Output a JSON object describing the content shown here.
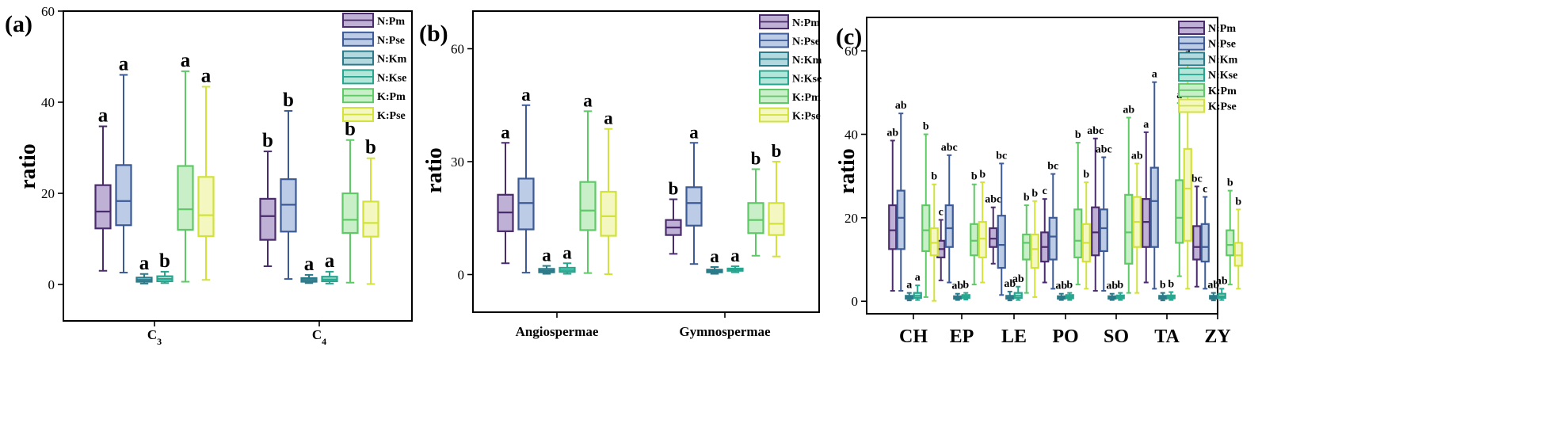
{
  "colors": {
    "N:Pm": {
      "stroke": "#4a2b6b",
      "fill": "#bfb0d6"
    },
    "N:Pse": {
      "stroke": "#3b5a96",
      "fill": "#bccbe6"
    },
    "N:Km": {
      "stroke": "#2a7a8a",
      "fill": "#b3d9df"
    },
    "N:Kse": {
      "stroke": "#27a58f",
      "fill": "#b3e6d8"
    },
    "K:Pm": {
      "stroke": "#5ec966",
      "fill": "#c9efc9"
    },
    "K:Pse": {
      "stroke": "#d2e23a",
      "fill": "#f4f8c0"
    }
  },
  "chart_data": [
    {
      "type": "box",
      "panel_label": "(a)",
      "ylabel": "ratio",
      "ylim": [
        -8,
        60
      ],
      "yticks": [
        0,
        20,
        40,
        60
      ],
      "categories": [
        "C3",
        "C4"
      ],
      "category_labels": [
        {
          "main": "C",
          "sub": "3"
        },
        {
          "main": "C",
          "sub": "4"
        }
      ],
      "legend": [
        "N:Pm",
        "N:Pse",
        "N:Km",
        "N:Kse",
        "K:Pm",
        "K:Pse"
      ],
      "series": [
        {
          "name": "N:Pm",
          "boxes": [
            {
              "min": 3,
              "q1": 12.3,
              "median": 16,
              "q3": 21.8,
              "max": 34.7,
              "sig": "a"
            },
            {
              "min": 4,
              "q1": 9.8,
              "median": 15,
              "q3": 18.8,
              "max": 29.2,
              "sig": "b"
            }
          ]
        },
        {
          "name": "N:Pse",
          "boxes": [
            {
              "min": 2.6,
              "q1": 13,
              "median": 18.3,
              "q3": 26.2,
              "max": 46,
              "sig": "a"
            },
            {
              "min": 1.2,
              "q1": 11.6,
              "median": 17.5,
              "q3": 23.1,
              "max": 38.1,
              "sig": "b"
            }
          ]
        },
        {
          "name": "N:Km",
          "boxes": [
            {
              "min": 0.2,
              "q1": 0.6,
              "median": 1,
              "q3": 1.5,
              "max": 2.3,
              "sig": "a"
            },
            {
              "min": 0.3,
              "q1": 0.6,
              "median": 1,
              "q3": 1.4,
              "max": 2.1,
              "sig": "a"
            }
          ]
        },
        {
          "name": "N:Kse",
          "boxes": [
            {
              "min": 0.3,
              "q1": 0.7,
              "median": 1.2,
              "q3": 1.8,
              "max": 2.8,
              "sig": "b"
            },
            {
              "min": 0.2,
              "q1": 0.7,
              "median": 1.1,
              "q3": 1.7,
              "max": 2.8,
              "sig": "a"
            }
          ]
        },
        {
          "name": "K:Pm",
          "boxes": [
            {
              "min": 0.6,
              "q1": 12,
              "median": 16.5,
              "q3": 26,
              "max": 46.8,
              "sig": "a"
            },
            {
              "min": 0.4,
              "q1": 11.3,
              "median": 14.2,
              "q3": 20,
              "max": 31.7,
              "sig": "b"
            }
          ]
        },
        {
          "name": "K:Pse",
          "boxes": [
            {
              "min": 1,
              "q1": 10.6,
              "median": 15.2,
              "q3": 23.6,
              "max": 43.4,
              "sig": "a"
            },
            {
              "min": 0.1,
              "q1": 10.5,
              "median": 13.5,
              "q3": 18.2,
              "max": 27.7,
              "sig": "b"
            }
          ]
        }
      ]
    },
    {
      "type": "box",
      "panel_label": "(b)",
      "ylabel": "ratio",
      "ylim": [
        -10,
        70
      ],
      "yticks": [
        0,
        30,
        60
      ],
      "categories": [
        "Angiospermae",
        "Gymnospermae"
      ],
      "legend": [
        "N:Pm",
        "N:Pse",
        "N:Km",
        "N:Kse",
        "K:Pm",
        "K:Pse"
      ],
      "series": [
        {
          "name": "N:Pm",
          "boxes": [
            {
              "min": 3,
              "q1": 11.5,
              "median": 16.5,
              "q3": 21.2,
              "max": 35,
              "sig": "a"
            },
            {
              "min": 5.5,
              "q1": 10.5,
              "median": 12.5,
              "q3": 14.5,
              "max": 20,
              "sig": "b"
            }
          ]
        },
        {
          "name": "N:Pse",
          "boxes": [
            {
              "min": 0.5,
              "q1": 12,
              "median": 19,
              "q3": 25.5,
              "max": 45,
              "sig": "a"
            },
            {
              "min": 2.8,
              "q1": 13,
              "median": 19,
              "q3": 23.2,
              "max": 35,
              "sig": "a"
            }
          ]
        },
        {
          "name": "N:Km",
          "boxes": [
            {
              "min": 0.2,
              "q1": 0.6,
              "median": 1,
              "q3": 1.5,
              "max": 2.3,
              "sig": "a"
            },
            {
              "min": 0.2,
              "q1": 0.6,
              "median": 0.9,
              "q3": 1.3,
              "max": 2,
              "sig": "a"
            }
          ]
        },
        {
          "name": "N:Kse",
          "boxes": [
            {
              "min": 0.2,
              "q1": 0.7,
              "median": 1.2,
              "q3": 1.8,
              "max": 3,
              "sig": "a"
            },
            {
              "min": 0.6,
              "q1": 1,
              "median": 1.3,
              "q3": 1.6,
              "max": 2.2,
              "sig": "a"
            }
          ]
        },
        {
          "name": "K:Pm",
          "boxes": [
            {
              "min": 0.4,
              "q1": 11.8,
              "median": 17,
              "q3": 24.6,
              "max": 43.4,
              "sig": "a"
            },
            {
              "min": 5,
              "q1": 11,
              "median": 14.5,
              "q3": 19,
              "max": 28,
              "sig": "b"
            }
          ]
        },
        {
          "name": "K:Pse",
          "boxes": [
            {
              "min": 0.1,
              "q1": 10.3,
              "median": 15.5,
              "q3": 22,
              "max": 38.7,
              "sig": "a"
            },
            {
              "min": 4.8,
              "q1": 10.5,
              "median": 13.5,
              "q3": 19,
              "max": 30,
              "sig": "b"
            }
          ]
        }
      ]
    },
    {
      "type": "box",
      "panel_label": "(c)",
      "ylabel": "ratio",
      "ylim": [
        -3,
        68
      ],
      "yticks": [
        0,
        20,
        40,
        60
      ],
      "categories": [
        "CH",
        "EP",
        "LE",
        "PO",
        "SO",
        "TA",
        "ZY"
      ],
      "legend": [
        "N:Pm",
        "N:Pse",
        "N:Km",
        "N:Kse",
        "K:Pm",
        "K:Pse"
      ],
      "series": [
        {
          "name": "N:Pm",
          "boxes": [
            {
              "min": 2.5,
              "q1": 12.5,
              "median": 17,
              "q3": 23,
              "max": 38.5,
              "sig": "ab"
            },
            {
              "min": 5,
              "q1": 10.5,
              "median": 12.5,
              "q3": 14.5,
              "max": 19.5,
              "sig": "c"
            },
            {
              "min": 9,
              "q1": 13,
              "median": 15,
              "q3": 17.5,
              "max": 22.5,
              "sig": "abc"
            },
            {
              "min": 4.5,
              "q1": 9.5,
              "median": 13,
              "q3": 16.5,
              "max": 24.5,
              "sig": "c"
            },
            {
              "min": 2.5,
              "q1": 11,
              "median": 16.5,
              "q3": 22.5,
              "max": 39,
              "sig": "abc"
            },
            {
              "min": 4.5,
              "q1": 13,
              "median": 19,
              "q3": 24.5,
              "max": 40.5,
              "sig": "a"
            },
            {
              "min": 3.5,
              "q1": 10,
              "median": 13,
              "q3": 18,
              "max": 27.5,
              "sig": "bc"
            }
          ]
        },
        {
          "name": "N:Pse",
          "boxes": [
            {
              "min": 2.5,
              "q1": 12.5,
              "median": 20,
              "q3": 26.5,
              "max": 45,
              "sig": "ab"
            },
            {
              "min": 4.5,
              "q1": 13,
              "median": 17.5,
              "q3": 23,
              "max": 35,
              "sig": "abc"
            },
            {
              "min": 1.5,
              "q1": 8,
              "median": 13.5,
              "q3": 20.5,
              "max": 33,
              "sig": "bc"
            },
            {
              "min": 3,
              "q1": 10,
              "median": 15.5,
              "q3": 20,
              "max": 30.5,
              "sig": "bc"
            },
            {
              "min": 2.5,
              "q1": 12,
              "median": 17.5,
              "q3": 22,
              "max": 34.5,
              "sig": "abc"
            },
            {
              "min": 3,
              "q1": 13,
              "median": 24,
              "q3": 32,
              "max": 52.5,
              "sig": "a"
            },
            {
              "min": 3,
              "q1": 9.5,
              "median": 13,
              "q3": 18.5,
              "max": 25,
              "sig": "c"
            }
          ]
        },
        {
          "name": "N:Km",
          "boxes": [
            {
              "min": 0.2,
              "q1": 0.6,
              "median": 1,
              "q3": 1.3,
              "max": 2,
              "sig": "a"
            },
            {
              "min": 0.3,
              "q1": 0.6,
              "median": 0.9,
              "q3": 1.2,
              "max": 1.8,
              "sig": "ab"
            },
            {
              "min": 0.2,
              "q1": 0.6,
              "median": 0.9,
              "q3": 1.3,
              "max": 2.3,
              "sig": "ab"
            },
            {
              "min": 0.3,
              "q1": 0.6,
              "median": 0.9,
              "q3": 1.2,
              "max": 1.8,
              "sig": "ab"
            },
            {
              "min": 0.3,
              "q1": 0.6,
              "median": 0.9,
              "q3": 1.2,
              "max": 1.8,
              "sig": "ab"
            },
            {
              "min": 0.2,
              "q1": 0.6,
              "median": 1,
              "q3": 1.3,
              "max": 2,
              "sig": "b"
            },
            {
              "min": 0.2,
              "q1": 0.6,
              "median": 1,
              "q3": 1.3,
              "max": 2,
              "sig": "ab"
            }
          ]
        },
        {
          "name": "N:Kse",
          "boxes": [
            {
              "min": 0.3,
              "q1": 0.8,
              "median": 1.3,
              "q3": 2,
              "max": 3.8,
              "sig": "a"
            },
            {
              "min": 0.4,
              "q1": 0.8,
              "median": 1.1,
              "q3": 1.5,
              "max": 2,
              "sig": "b"
            },
            {
              "min": 0.3,
              "q1": 0.8,
              "median": 1.3,
              "q3": 2,
              "max": 3.5,
              "sig": "ab"
            },
            {
              "min": 0.3,
              "q1": 0.7,
              "median": 1.1,
              "q3": 1.5,
              "max": 2,
              "sig": "b"
            },
            {
              "min": 0.3,
              "q1": 0.7,
              "median": 1,
              "q3": 1.4,
              "max": 2,
              "sig": "b"
            },
            {
              "min": 0.3,
              "q1": 0.7,
              "median": 1,
              "q3": 1.4,
              "max": 2.2,
              "sig": "b"
            },
            {
              "min": 0.3,
              "q1": 0.8,
              "median": 1.2,
              "q3": 1.8,
              "max": 3,
              "sig": "ab"
            }
          ]
        },
        {
          "name": "K:Pm",
          "boxes": [
            {
              "min": 1,
              "q1": 12,
              "median": 17,
              "q3": 23,
              "max": 40,
              "sig": "b"
            },
            {
              "min": 4,
              "q1": 11,
              "median": 14.5,
              "q3": 18.5,
              "max": 28,
              "sig": "b"
            },
            {
              "min": 2,
              "q1": 10,
              "median": 14,
              "q3": 16,
              "max": 23,
              "sig": "b"
            },
            {
              "min": 4,
              "q1": 10.5,
              "median": 14.5,
              "q3": 22,
              "max": 38,
              "sig": "b"
            },
            {
              "min": 2,
              "q1": 9,
              "median": 16.5,
              "q3": 25.5,
              "max": 44,
              "sig": "ab"
            },
            {
              "min": 6,
              "q1": 14,
              "median": 20,
              "q3": 29,
              "max": 47.5,
              "sig": "a"
            },
            {
              "min": 4,
              "q1": 11,
              "median": 13.5,
              "q3": 17,
              "max": 26.5,
              "sig": "b"
            }
          ]
        },
        {
          "name": "K:Pse",
          "boxes": [
            {
              "min": 0.1,
              "q1": 11,
              "median": 14,
              "q3": 17.5,
              "max": 28,
              "sig": "b"
            },
            {
              "min": 4.5,
              "q1": 10.5,
              "median": 15,
              "q3": 19,
              "max": 28.5,
              "sig": "b"
            },
            {
              "min": 1,
              "q1": 8,
              "median": 12.5,
              "q3": 16,
              "max": 24,
              "sig": "b"
            },
            {
              "min": 3,
              "q1": 9.5,
              "median": 14,
              "q3": 18.5,
              "max": 28.5,
              "sig": "b"
            },
            {
              "min": 2,
              "q1": 13,
              "median": 19,
              "q3": 25,
              "max": 33,
              "sig": "ab"
            },
            {
              "min": 3,
              "q1": 14.5,
              "median": 27,
              "q3": 36.5,
              "max": 58,
              "sig": "a"
            },
            {
              "min": 3,
              "q1": 8.5,
              "median": 11,
              "q3": 14,
              "max": 22,
              "sig": "b"
            }
          ]
        }
      ]
    }
  ]
}
